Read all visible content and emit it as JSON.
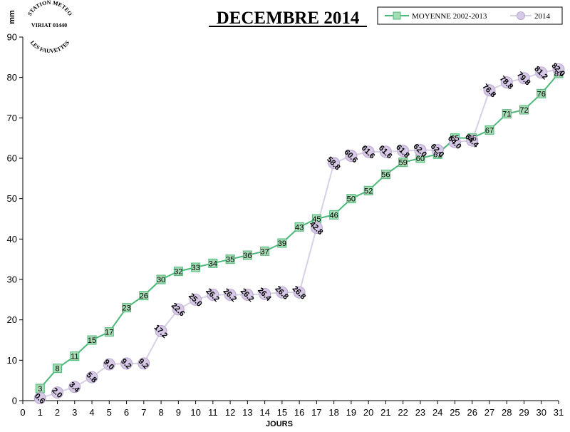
{
  "chart_data": {
    "type": "line",
    "title": "DECEMBRE 2014",
    "xlabel": "JOURS",
    "ylabel": "mm",
    "xlim": [
      0,
      31
    ],
    "ylim": [
      0,
      90
    ],
    "xticks": [
      0,
      1,
      2,
      3,
      4,
      5,
      6,
      7,
      8,
      9,
      10,
      11,
      12,
      13,
      14,
      15,
      16,
      17,
      18,
      19,
      20,
      21,
      22,
      23,
      24,
      25,
      26,
      27,
      28,
      29,
      30,
      31
    ],
    "yticks": [
      0,
      10,
      20,
      30,
      40,
      50,
      60,
      70,
      80,
      90
    ],
    "legend_position": "top-right",
    "x": [
      1,
      2,
      3,
      4,
      5,
      6,
      7,
      8,
      9,
      10,
      11,
      12,
      13,
      14,
      15,
      16,
      17,
      18,
      19,
      20,
      21,
      22,
      23,
      24,
      25,
      26,
      27,
      28,
      29,
      30,
      31
    ],
    "series": [
      {
        "name": "MOYENNE 2002-2013",
        "color": "#4cb97a",
        "fill": "#a6dcb4",
        "marker": "square",
        "values": [
          3,
          8,
          11,
          15,
          17,
          23,
          26,
          30,
          32,
          33,
          34,
          35,
          36,
          37,
          39,
          43,
          45,
          46,
          50,
          52,
          56,
          59,
          60,
          61,
          65,
          65,
          67,
          71,
          72,
          76,
          81
        ],
        "labels": [
          "3",
          "8",
          "11",
          "15",
          "17",
          "23",
          "26",
          "30",
          "32",
          "33",
          "34",
          "35",
          "36",
          "37",
          "39",
          "43",
          "45",
          "46",
          "50",
          "52",
          "56",
          "59",
          "60",
          "61",
          "65",
          "65",
          "67",
          "71",
          "72",
          "76",
          "81"
        ]
      },
      {
        "name": "2014",
        "color": "#d8d0e4",
        "fill": "#d6c8e6",
        "marker": "circle",
        "values": [
          0.6,
          2.0,
          3.4,
          5.8,
          9.0,
          9.2,
          9.2,
          17.2,
          22.6,
          25.0,
          26.2,
          26.2,
          26.2,
          26.4,
          26.8,
          26.8,
          42.8,
          58.8,
          60.6,
          61.6,
          61.6,
          61.8,
          62.0,
          62.0,
          64.0,
          64.4,
          76.8,
          78.8,
          79.8,
          81.2,
          82.0
        ],
        "labels": [
          "0.6",
          "2.0",
          "3.4",
          "5.8",
          "9.0",
          "9.2",
          "9.2",
          "17.2",
          "22.6",
          "25.0",
          "26.2",
          "26.2",
          "26.2",
          "26.4",
          "26.8",
          "26.8",
          "42.8",
          "58.8",
          "60.6",
          "61.6",
          "61.6",
          "61.8",
          "62.0",
          "62.0",
          "64.0",
          "64.4",
          "76.8",
          "78.8",
          "79.8",
          "81.2",
          "82.0"
        ]
      }
    ]
  },
  "stamp": {
    "line1": "STATION METEO",
    "line2": "VIRIAT 01440",
    "line3": "LES FAUVETTES"
  }
}
